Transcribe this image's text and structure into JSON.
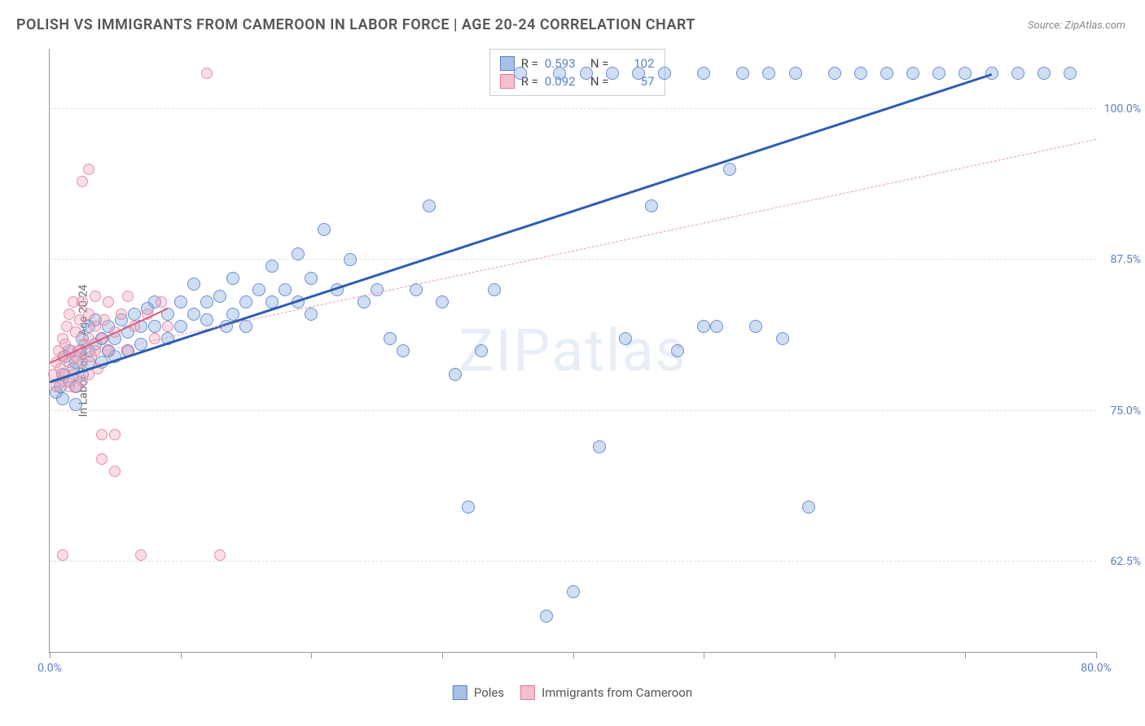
{
  "title": "POLISH VS IMMIGRANTS FROM CAMEROON IN LABOR FORCE | AGE 20-24 CORRELATION CHART",
  "source": "Source: ZipAtlas.com",
  "watermark": "ZIPatlas",
  "y_axis_title": "In Labor Force | Age 20-24",
  "chart": {
    "type": "scatter",
    "background_color": "#ffffff",
    "grid_color": "#dddddd",
    "axis_color": "#999999",
    "xlim": [
      0,
      80
    ],
    "ylim": [
      55,
      105
    ],
    "x_ticks": [
      0,
      10,
      20,
      30,
      40,
      50,
      60,
      70,
      80
    ],
    "x_tick_labels": {
      "0": "0.0%",
      "80": "80.0%"
    },
    "y_ticks": [
      62.5,
      75.0,
      87.5,
      100.0
    ],
    "y_tick_labels": [
      "62.5%",
      "75.0%",
      "87.5%",
      "100.0%"
    ],
    "tick_label_color": "#5b7fc7",
    "tick_fontsize": 14,
    "title_fontsize": 18,
    "marker_radius": 8,
    "marker_stroke_width": 1.5
  },
  "series": [
    {
      "name": "Poles",
      "fill_color": "rgba(120,160,220,0.35)",
      "stroke_color": "#6a8fd0",
      "swatch_fill": "#a8c0e8",
      "swatch_border": "#5b7fc7",
      "R": "0.593",
      "N": "102",
      "trend": {
        "x1": 0,
        "y1": 77.5,
        "x2": 72,
        "y2": 103,
        "color": "#2e5db0",
        "width": 3,
        "dash": false
      },
      "points": [
        [
          0.5,
          76.5
        ],
        [
          0.8,
          77
        ],
        [
          1,
          78
        ],
        [
          1,
          76
        ],
        [
          1.2,
          79.5
        ],
        [
          1.5,
          77.5
        ],
        [
          1.5,
          80
        ],
        [
          1.8,
          78.5
        ],
        [
          2,
          79
        ],
        [
          2,
          77
        ],
        [
          2,
          75.5
        ],
        [
          2.3,
          80
        ],
        [
          2.5,
          78
        ],
        [
          2.5,
          81
        ],
        [
          3,
          80
        ],
        [
          3,
          82
        ],
        [
          3,
          79
        ],
        [
          3.5,
          80.5
        ],
        [
          3.5,
          82.5
        ],
        [
          4,
          81
        ],
        [
          4,
          79
        ],
        [
          4.5,
          82
        ],
        [
          4.5,
          80
        ],
        [
          5,
          81
        ],
        [
          5,
          79.5
        ],
        [
          5.5,
          82.5
        ],
        [
          6,
          81.5
        ],
        [
          6,
          80
        ],
        [
          6.5,
          83
        ],
        [
          7,
          82
        ],
        [
          7,
          80.5
        ],
        [
          7.5,
          83.5
        ],
        [
          8,
          82
        ],
        [
          8,
          84
        ],
        [
          9,
          83
        ],
        [
          9,
          81
        ],
        [
          10,
          84
        ],
        [
          10,
          82
        ],
        [
          11,
          85.5
        ],
        [
          11,
          83
        ],
        [
          12,
          84
        ],
        [
          12,
          82.5
        ],
        [
          13,
          84.5
        ],
        [
          13.5,
          82
        ],
        [
          14,
          86
        ],
        [
          14,
          83
        ],
        [
          15,
          84
        ],
        [
          15,
          82
        ],
        [
          16,
          85
        ],
        [
          17,
          84
        ],
        [
          17,
          87
        ],
        [
          18,
          85
        ],
        [
          19,
          84
        ],
        [
          19,
          88
        ],
        [
          20,
          86
        ],
        [
          20,
          83
        ],
        [
          21,
          90
        ],
        [
          22,
          85
        ],
        [
          23,
          87.5
        ],
        [
          24,
          84
        ],
        [
          25,
          85
        ],
        [
          26,
          81
        ],
        [
          27,
          80
        ],
        [
          28,
          85
        ],
        [
          29,
          92
        ],
        [
          30,
          84
        ],
        [
          31,
          78
        ],
        [
          32,
          67
        ],
        [
          33,
          80
        ],
        [
          34,
          85
        ],
        [
          36,
          103
        ],
        [
          38,
          58
        ],
        [
          40,
          60
        ],
        [
          42,
          72
        ],
        [
          44,
          81
        ],
        [
          46,
          92
        ],
        [
          48,
          80
        ],
        [
          50,
          103
        ],
        [
          52,
          95
        ],
        [
          54,
          82
        ],
        [
          56,
          81
        ],
        [
          58,
          67
        ],
        [
          60,
          103
        ],
        [
          62,
          103
        ],
        [
          64,
          103
        ],
        [
          66,
          103
        ],
        [
          68,
          103
        ],
        [
          70,
          103
        ],
        [
          72,
          103
        ],
        [
          74,
          103
        ],
        [
          76,
          103
        ],
        [
          78,
          103
        ],
        [
          53,
          103
        ],
        [
          45,
          103
        ],
        [
          41,
          103
        ],
        [
          43,
          103
        ],
        [
          39,
          103
        ],
        [
          55,
          103
        ],
        [
          57,
          103
        ],
        [
          47,
          103
        ],
        [
          50,
          82
        ],
        [
          51,
          82
        ]
      ]
    },
    {
      "name": "Immigrants from Cameroon",
      "fill_color": "rgba(240,160,180,0.35)",
      "stroke_color": "#e78fa8",
      "swatch_fill": "#f5c0ce",
      "swatch_border": "#e07a95",
      "R": "0.092",
      "N": "57",
      "trend": {
        "x1": 0,
        "y1": 79,
        "x2": 80,
        "y2": 97.5,
        "color": "#e89ab0",
        "width": 1,
        "dash": true
      },
      "trend_solid": {
        "x1": 0,
        "y1": 79,
        "x2": 9,
        "y2": 83.5,
        "color": "#e05a80",
        "width": 2.5,
        "dash": false
      },
      "points": [
        [
          0.3,
          78
        ],
        [
          0.5,
          79
        ],
        [
          0.5,
          77
        ],
        [
          0.7,
          80
        ],
        [
          0.8,
          78.5
        ],
        [
          1,
          79.5
        ],
        [
          1,
          77.5
        ],
        [
          1,
          81
        ],
        [
          1.2,
          78
        ],
        [
          1.2,
          80.5
        ],
        [
          1.3,
          82
        ],
        [
          1.5,
          79
        ],
        [
          1.5,
          77
        ],
        [
          1.5,
          83
        ],
        [
          1.7,
          80
        ],
        [
          1.8,
          78
        ],
        [
          1.8,
          84
        ],
        [
          2,
          79.5
        ],
        [
          2,
          81.5
        ],
        [
          2,
          77
        ],
        [
          2.2,
          80
        ],
        [
          2.3,
          82.5
        ],
        [
          2.5,
          79
        ],
        [
          2.5,
          84
        ],
        [
          2.5,
          77.5
        ],
        [
          2.7,
          80.5
        ],
        [
          3,
          81
        ],
        [
          3,
          78
        ],
        [
          3,
          83
        ],
        [
          3.2,
          79.5
        ],
        [
          3.5,
          82
        ],
        [
          3.5,
          80
        ],
        [
          3.5,
          84.5
        ],
        [
          3.7,
          78.5
        ],
        [
          4,
          81
        ],
        [
          4,
          73
        ],
        [
          4.2,
          82.5
        ],
        [
          4.5,
          80
        ],
        [
          4.5,
          84
        ],
        [
          5,
          81.5
        ],
        [
          5,
          73
        ],
        [
          5.5,
          83
        ],
        [
          6,
          80
        ],
        [
          6,
          84.5
        ],
        [
          6.5,
          82
        ],
        [
          7,
          63
        ],
        [
          7.5,
          83
        ],
        [
          8,
          81
        ],
        [
          8.5,
          84
        ],
        [
          9,
          82
        ],
        [
          1,
          63
        ],
        [
          2.5,
          94
        ],
        [
          3,
          95
        ],
        [
          4,
          71
        ],
        [
          12,
          103
        ],
        [
          13,
          63
        ],
        [
          5,
          70
        ]
      ]
    }
  ],
  "legend_box": {
    "rows": [
      {
        "series_idx": 0,
        "R_label": "R =",
        "N_label": "N ="
      },
      {
        "series_idx": 1,
        "R_label": "R =",
        "N_label": "N ="
      }
    ]
  },
  "bottom_legend": [
    {
      "series_idx": 0
    },
    {
      "series_idx": 1
    }
  ]
}
